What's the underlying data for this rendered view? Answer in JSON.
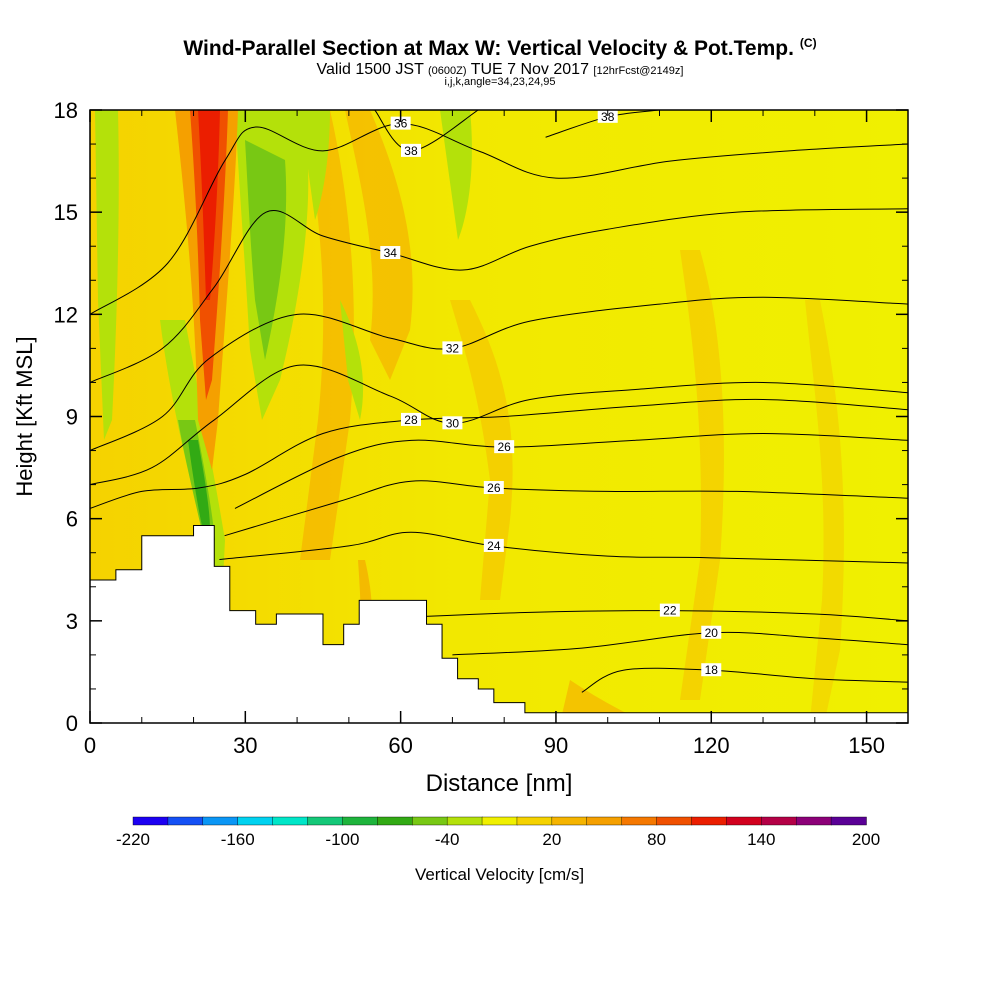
{
  "title": "Wind-Parallel Section at Max W: Vertical Velocity & Pot.Temp.",
  "title_mark": "(C)",
  "subtitle_main1": "Valid 1500 JST",
  "subtitle_small1": "(0600Z)",
  "subtitle_main2": "TUE 7 Nov 2017",
  "subtitle_small2": "[12hrFcst@2149z]",
  "subtitle2": "i,j,k,angle=34,23,24,95",
  "chart_data": {
    "type": "heatmap",
    "xlabel": "Distance [nm]",
    "ylabel": "Height [Kft MSL]",
    "xlim": [
      0,
      158
    ],
    "ylim": [
      0,
      18
    ],
    "x_ticks": [
      0,
      30,
      60,
      90,
      120,
      150
    ],
    "y_ticks": [
      0,
      3,
      6,
      9,
      12,
      15,
      18
    ],
    "colorbar": {
      "label": "Vertical Velocity [cm/s]",
      "tick_labels": [
        -220,
        -160,
        -100,
        -40,
        20,
        80,
        140,
        200
      ],
      "colors": [
        "#1c00f2",
        "#1450f5",
        "#0a96f5",
        "#00d2f0",
        "#00e6c8",
        "#14c878",
        "#1eb43c",
        "#32aa14",
        "#78c814",
        "#b4e10a",
        "#f0f000",
        "#f5d200",
        "#f5b400",
        "#f5a000",
        "#f57800",
        "#f05000",
        "#eb1e00",
        "#d2001e",
        "#b40046",
        "#8c0078",
        "#5a0096"
      ]
    },
    "terrain": [
      [
        0,
        4.2
      ],
      [
        5,
        4.5
      ],
      [
        10,
        5.5
      ],
      [
        20,
        5.8
      ],
      [
        24,
        4.6
      ],
      [
        27,
        3.3
      ],
      [
        32,
        2.9
      ],
      [
        36,
        3.2
      ],
      [
        45,
        2.3
      ],
      [
        49,
        2.9
      ],
      [
        52,
        3.6
      ],
      [
        65,
        2.9
      ],
      [
        68,
        1.9
      ],
      [
        71,
        1.3
      ],
      [
        75,
        1.0
      ],
      [
        78,
        0.6
      ],
      [
        84,
        0.3
      ],
      [
        158,
        0.3
      ]
    ],
    "theta_contours": [
      {
        "label": "18",
        "pts": [
          [
            95,
            0.9
          ],
          [
            103,
            1.55
          ],
          [
            120,
            1.55
          ],
          [
            140,
            1.3
          ],
          [
            158,
            1.2
          ]
        ]
      },
      {
        "label": "20",
        "pts": [
          [
            70,
            2.0
          ],
          [
            95,
            2.2
          ],
          [
            120,
            2.65
          ],
          [
            140,
            2.5
          ],
          [
            158,
            2.3
          ]
        ]
      },
      {
        "label": "22",
        "pts": [
          [
            60,
            3.1
          ],
          [
            85,
            3.25
          ],
          [
            112,
            3.3
          ],
          [
            140,
            3.2
          ],
          [
            158,
            3.0
          ]
        ]
      },
      {
        "label": "24",
        "pts": [
          [
            25,
            4.8
          ],
          [
            50,
            5.2
          ],
          [
            62,
            5.6
          ],
          [
            78,
            5.2
          ],
          [
            100,
            4.9
          ],
          [
            120,
            4.85
          ],
          [
            158,
            4.7
          ]
        ]
      },
      {
        "label": "26",
        "pts": [
          [
            26,
            5.5
          ],
          [
            48,
            6.5
          ],
          [
            62,
            7.1
          ],
          [
            78,
            6.9
          ],
          [
            100,
            6.8
          ],
          [
            125,
            6.8
          ],
          [
            158,
            6.6
          ]
        ]
      },
      {
        "label": "26",
        "pts": [
          [
            28,
            6.3
          ],
          [
            48,
            7.8
          ],
          [
            62,
            8.3
          ],
          [
            80,
            8.1
          ],
          [
            105,
            8.3
          ],
          [
            130,
            8.5
          ],
          [
            158,
            8.3
          ]
        ]
      },
      {
        "label": "28",
        "pts": [
          [
            0,
            6.3
          ],
          [
            10,
            6.8
          ],
          [
            21,
            6.9
          ],
          [
            30,
            7.3
          ],
          [
            45,
            8.5
          ],
          [
            62,
            8.9
          ],
          [
            80,
            9.0
          ],
          [
            105,
            9.3
          ],
          [
            130,
            9.5
          ],
          [
            158,
            9.2
          ]
        ]
      },
      {
        "label": "30",
        "pts": [
          [
            0,
            7.0
          ],
          [
            12,
            7.5
          ],
          [
            24,
            8.9
          ],
          [
            40,
            10.5
          ],
          [
            58,
            9.6
          ],
          [
            70,
            8.8
          ],
          [
            85,
            9.5
          ],
          [
            106,
            9.8
          ],
          [
            130,
            10.0
          ],
          [
            158,
            9.7
          ]
        ]
      },
      {
        "label": "32",
        "pts": [
          [
            0,
            8.0
          ],
          [
            14,
            9.0
          ],
          [
            23,
            10.7
          ],
          [
            40,
            12.0
          ],
          [
            58,
            11.3
          ],
          [
            70,
            11.0
          ],
          [
            85,
            11.8
          ],
          [
            110,
            12.3
          ],
          [
            130,
            12.5
          ],
          [
            158,
            12.3
          ]
        ]
      },
      {
        "label": "34",
        "pts": [
          [
            0,
            10.0
          ],
          [
            14,
            11.0
          ],
          [
            24,
            12.8
          ],
          [
            34,
            15.0
          ],
          [
            45,
            14.3
          ],
          [
            58,
            13.8
          ],
          [
            72,
            13.3
          ],
          [
            85,
            14.0
          ],
          [
            100,
            14.5
          ],
          [
            125,
            15.0
          ],
          [
            158,
            15.1
          ]
        ]
      },
      {
        "label": "36",
        "pts": [
          [
            0,
            12.0
          ],
          [
            15,
            13.5
          ],
          [
            26,
            16.5
          ],
          [
            32,
            17.5
          ],
          [
            45,
            16.8
          ],
          [
            60,
            17.6
          ],
          [
            75,
            16.8
          ],
          [
            90,
            16.0
          ],
          [
            112,
            16.5
          ],
          [
            135,
            16.8
          ],
          [
            158,
            17.0
          ]
        ]
      },
      {
        "label": "38",
        "pts": [
          [
            55,
            18.0
          ],
          [
            62,
            16.8
          ],
          [
            75,
            18.0
          ]
        ]
      },
      {
        "label": "38",
        "pts": [
          [
            88,
            17.2
          ],
          [
            100,
            17.8
          ],
          [
            110,
            18.0
          ]
        ]
      }
    ]
  }
}
